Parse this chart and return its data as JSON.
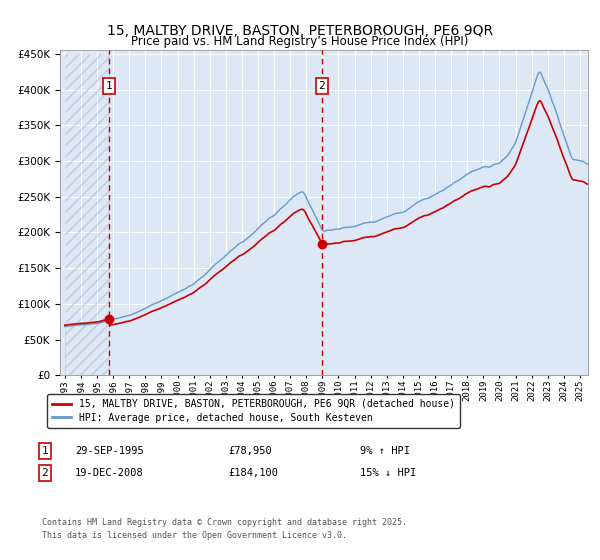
{
  "title": "15, MALTBY DRIVE, BASTON, PETERBOROUGH, PE6 9QR",
  "subtitle": "Price paid vs. HM Land Registry’s House Price Index (HPI)",
  "ylim": [
    0,
    450000
  ],
  "xlim_start": 1992.7,
  "xlim_end": 2025.5,
  "vline1_x": 1995.75,
  "vline2_x": 2008.97,
  "marker1_x": 1995.75,
  "marker1_y": 78950,
  "marker2_x": 2008.97,
  "marker2_y": 184100,
  "marker1_label": "1",
  "marker2_label": "2",
  "legend_line1": "15, MALTBY DRIVE, BASTON, PETERBOROUGH, PE6 9QR (detached house)",
  "legend_line2": "HPI: Average price, detached house, South Kesteven",
  "ann1_label": "1",
  "ann1_date": "29-SEP-1995",
  "ann1_price": "£78,950",
  "ann1_hpi": "9% ↑ HPI",
  "ann2_label": "2",
  "ann2_date": "19-DEC-2008",
  "ann2_price": "£184,100",
  "ann2_hpi": "15% ↓ HPI",
  "footer": "Contains HM Land Registry data © Crown copyright and database right 2025.\nThis data is licensed under the Open Government Licence v3.0.",
  "line_red_color": "#cc0000",
  "line_blue_color": "#6699cc",
  "fill_blue_color": "#dce8f5",
  "vline_color": "#cc0000",
  "bg_color": "#dce8f5",
  "hatch_end_x": 1995.75
}
